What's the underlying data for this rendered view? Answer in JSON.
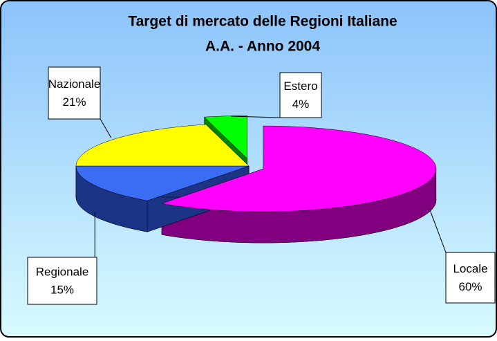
{
  "chart_data": {
    "type": "pie3d",
    "title": "Target di mercato delle Regioni Italiane",
    "subtitle": "A.A. - Anno 2004",
    "categories": [
      "Locale",
      "Regionale",
      "Nazionale",
      "Estero"
    ],
    "values": [
      60,
      15,
      21,
      4
    ],
    "value_labels": [
      "60%",
      "15%",
      "21%",
      "4%"
    ],
    "colors": [
      "#ff00ff",
      "#3a6cf4",
      "#ffff00",
      "#00ff00"
    ],
    "side_colors": [
      "#800080",
      "#1c3486",
      "#808000",
      "#008000"
    ]
  }
}
